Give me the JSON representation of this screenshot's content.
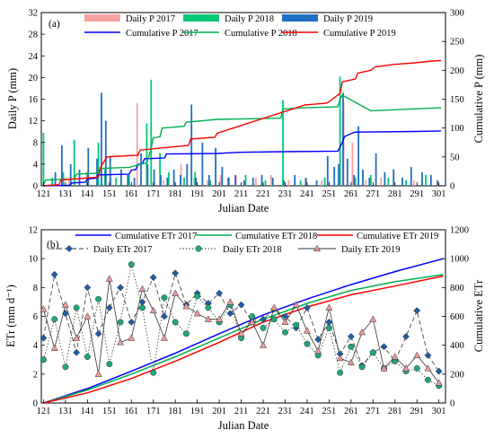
{
  "chart_data": [
    {
      "type": "bar",
      "panel_label": "(a)",
      "xlabel": "Julian Date",
      "ylabel": "Daily P (mm)",
      "y2label": "Cumulative P (mm)",
      "xlim": [
        120,
        304
      ],
      "ylim": [
        0,
        32
      ],
      "y2lim": [
        0,
        300
      ],
      "xticks": [
        121,
        131,
        141,
        151,
        161,
        171,
        181,
        191,
        201,
        211,
        221,
        231,
        241,
        251,
        261,
        271,
        281,
        291,
        301
      ],
      "yticks": [
        0,
        4,
        8,
        12,
        16,
        20,
        24,
        28,
        32
      ],
      "y2ticks": [
        0,
        50,
        100,
        150,
        200,
        250,
        300
      ],
      "legend_position": "top",
      "bar_series": [
        {
          "name": "Daily P 2017",
          "color": "#f4a3a3",
          "x": [
            133,
            141,
            152,
            164,
            176,
            184,
            190,
            196,
            202,
            209,
            218,
            225,
            233,
            241,
            248,
            258,
            262,
            268,
            275,
            290
          ],
          "values": [
            1.0,
            2.5,
            1.5,
            15.3,
            1.0,
            4.0,
            1.5,
            1.0,
            2.0,
            1.8,
            1.5,
            2.0,
            1.0,
            1.5,
            1.0,
            15.5,
            8.0,
            1.0,
            1.5,
            1.0
          ]
        },
        {
          "name": "Daily P 2018",
          "color": "#00c875",
          "x": [
            121,
            125,
            130,
            135,
            141,
            146,
            149,
            154,
            160,
            168,
            170,
            174,
            178,
            185,
            190,
            197,
            205,
            213,
            222,
            230,
            238,
            249,
            256,
            263,
            270,
            278,
            286,
            295
          ],
          "values": [
            9.8,
            1.5,
            2.5,
            8.5,
            2.5,
            8.0,
            3.0,
            1.5,
            2.0,
            11.5,
            19.6,
            6.0,
            2.5,
            1.5,
            2.5,
            1.0,
            1.5,
            2.0,
            1.0,
            15.8,
            1.0,
            1.5,
            20.2,
            1.5,
            2.0,
            1.5,
            1.0,
            2.0
          ]
        },
        {
          "name": "Daily P 2019",
          "color": "#1f6fc2",
          "x": [
            126,
            129,
            133,
            137,
            141,
            145,
            147,
            149,
            151,
            156,
            159,
            162,
            165,
            168,
            171,
            174,
            177,
            180,
            183,
            186,
            188,
            190,
            193,
            196,
            199,
            202,
            205,
            208,
            212,
            216,
            220,
            225,
            230,
            235,
            240,
            245,
            250,
            253,
            255,
            257,
            259,
            262,
            264,
            266,
            269,
            272,
            276,
            280,
            284,
            288,
            293,
            297,
            300
          ],
          "values": [
            2.5,
            7.5,
            4.0,
            3.0,
            7.0,
            5.0,
            17.2,
            12.0,
            5.5,
            3.0,
            2.0,
            1.5,
            6.0,
            4.0,
            3.0,
            2.0,
            1.5,
            3.0,
            2.0,
            4.0,
            15.0,
            1.5,
            8.0,
            2.0,
            7.0,
            3.5,
            1.5,
            2.0,
            1.0,
            1.5,
            2.0,
            1.5,
            1.0,
            2.0,
            1.5,
            1.0,
            5.5,
            3.5,
            4.0,
            17.2,
            5.0,
            2.0,
            11.0,
            3.0,
            1.5,
            6.0,
            2.5,
            3.0,
            1.5,
            3.5,
            2.5,
            2.0,
            1.0
          ]
        }
      ],
      "line_series": [
        {
          "name": "Cumulative P 2017",
          "color": "#0000ff",
          "x": [
            121,
            133,
            134,
            140,
            141,
            145,
            146,
            160,
            161,
            163,
            164,
            166,
            167,
            176,
            177,
            200,
            205,
            210,
            230,
            255,
            257,
            258,
            262,
            263,
            290,
            302
          ],
          "values": [
            0,
            1,
            5,
            6,
            12,
            13,
            19,
            20,
            27,
            28,
            37,
            38,
            47,
            48,
            55,
            56,
            57,
            58,
            59,
            60,
            75,
            85,
            92,
            93,
            94,
            95
          ]
        },
        {
          "name": "Cumulative P 2018",
          "color": "#00b050",
          "x": [
            121,
            122,
            135,
            136,
            146,
            147,
            160,
            168,
            169,
            170,
            171,
            174,
            175,
            185,
            186,
            200,
            229,
            230,
            240,
            255,
            256,
            257,
            270,
            302
          ],
          "values": [
            2,
            10,
            12,
            20,
            22,
            30,
            32,
            40,
            51,
            65,
            83,
            85,
            100,
            103,
            110,
            115,
            117,
            133,
            135,
            137,
            150,
            157,
            130,
            135
          ]
        },
        {
          "name": "Cumulative P 2019",
          "color": "#ff0000",
          "x": [
            121,
            128,
            129,
            146,
            147,
            149,
            150,
            164,
            165,
            187,
            188,
            199,
            200,
            240,
            250,
            256,
            257,
            263,
            264,
            270,
            272,
            280,
            290,
            298,
            302
          ],
          "values": [
            0,
            2,
            10,
            15,
            32,
            45,
            50,
            53,
            62,
            70,
            81,
            84,
            91,
            140,
            143,
            160,
            180,
            185,
            195,
            200,
            206,
            210,
            213,
            216,
            217
          ]
        }
      ]
    },
    {
      "type": "line",
      "panel_label": "(b)",
      "xlabel": "Julian Date",
      "ylabel": "ETr (mm d⁻¹)",
      "y2label": "Cumulative ETr",
      "xlim": [
        120,
        304
      ],
      "ylim": [
        0,
        12
      ],
      "y2lim": [
        0,
        1200
      ],
      "xticks": [
        121,
        131,
        141,
        151,
        161,
        171,
        181,
        191,
        201,
        211,
        221,
        231,
        241,
        251,
        261,
        271,
        281,
        291,
        301
      ],
      "yticks": [
        0,
        2,
        4,
        6,
        8,
        10,
        12
      ],
      "y2ticks": [
        0,
        200,
        400,
        600,
        800,
        1000,
        1200
      ],
      "legend_position": "top",
      "cumulative_series": [
        {
          "name": "Cumulative ETr 2017",
          "color": "#0000ff",
          "x": [
            121,
            141,
            161,
            181,
            201,
            221,
            241,
            261,
            281,
            303
          ],
          "values": [
            0,
            100,
            220,
            345,
            480,
            610,
            720,
            820,
            910,
            1000
          ]
        },
        {
          "name": "Cumulative ETr 2018",
          "color": "#00b050",
          "x": [
            121,
            141,
            161,
            181,
            201,
            221,
            241,
            261,
            281,
            303
          ],
          "values": [
            0,
            90,
            200,
            320,
            450,
            580,
            690,
            780,
            840,
            890
          ]
        },
        {
          "name": "Cumulative ETr 2019",
          "color": "#ff0000",
          "x": [
            121,
            141,
            161,
            181,
            201,
            221,
            241,
            261,
            281,
            303
          ],
          "values": [
            0,
            70,
            170,
            290,
            420,
            560,
            665,
            750,
            810,
            880
          ]
        }
      ],
      "daily_series": [
        {
          "name": "Daily ETr 2017",
          "color": "#1f5fa8",
          "marker": "diamond",
          "line": "dashed",
          "x": [
            121,
            126,
            131,
            136,
            141,
            146,
            151,
            156,
            161,
            166,
            171,
            176,
            181,
            186,
            191,
            196,
            201,
            206,
            211,
            216,
            221,
            226,
            231,
            236,
            241,
            246,
            251,
            256,
            261,
            266,
            271,
            276,
            281,
            286,
            291,
            296,
            301
          ],
          "values": [
            4.5,
            8.9,
            6.2,
            3.5,
            8.0,
            4.8,
            6.6,
            8.0,
            5.6,
            7.0,
            8.7,
            6.0,
            9.0,
            6.8,
            7.6,
            6.9,
            7.6,
            6.2,
            6.8,
            5.6,
            5.8,
            6.5,
            6.0,
            5.2,
            6.6,
            4.4,
            5.6,
            3.4,
            4.6,
            2.6,
            3.5,
            3.9,
            2.9,
            4.6,
            6.4,
            3.3,
            2.2
          ]
        },
        {
          "name": "Daily ETr 2018",
          "color": "#20a880",
          "marker": "circle",
          "line": "dotted",
          "x": [
            121,
            126,
            131,
            136,
            141,
            146,
            151,
            156,
            161,
            166,
            171,
            176,
            181,
            186,
            191,
            196,
            201,
            206,
            211,
            216,
            221,
            226,
            231,
            236,
            241,
            246,
            251,
            256,
            261,
            266,
            271,
            276,
            281,
            286,
            291,
            296,
            301
          ],
          "values": [
            3.0,
            5.8,
            2.5,
            6.6,
            3.2,
            7.2,
            2.7,
            5.6,
            9.6,
            6.6,
            2.1,
            7.3,
            5.6,
            4.8,
            7.4,
            6.6,
            5.6,
            6.8,
            4.5,
            6.0,
            5.2,
            5.8,
            4.9,
            5.4,
            4.1,
            3.3,
            5.2,
            2.1,
            3.9,
            2.5,
            3.5,
            2.4,
            2.9,
            2.2,
            2.4,
            1.6,
            1.2
          ]
        },
        {
          "name": "Daily ETr 2019",
          "color": "#e89a9a",
          "marker": "triangle",
          "line": "solid",
          "x": [
            121,
            126,
            131,
            136,
            141,
            146,
            151,
            156,
            161,
            166,
            171,
            176,
            181,
            186,
            191,
            196,
            201,
            206,
            211,
            216,
            221,
            226,
            231,
            236,
            241,
            246,
            251,
            256,
            261,
            266,
            271,
            276,
            281,
            286,
            291,
            296,
            301
          ],
          "values": [
            6.5,
            3.8,
            6.8,
            4.5,
            6.0,
            2.0,
            8.6,
            4.2,
            4.5,
            7.9,
            6.4,
            4.5,
            7.6,
            6.7,
            6.2,
            5.8,
            5.8,
            7.0,
            4.8,
            5.6,
            4.0,
            6.6,
            5.6,
            6.8,
            5.0,
            3.6,
            6.6,
            3.1,
            2.8,
            4.9,
            5.8,
            2.4,
            3.2,
            2.4,
            3.3,
            2.4,
            1.4
          ]
        }
      ]
    }
  ]
}
